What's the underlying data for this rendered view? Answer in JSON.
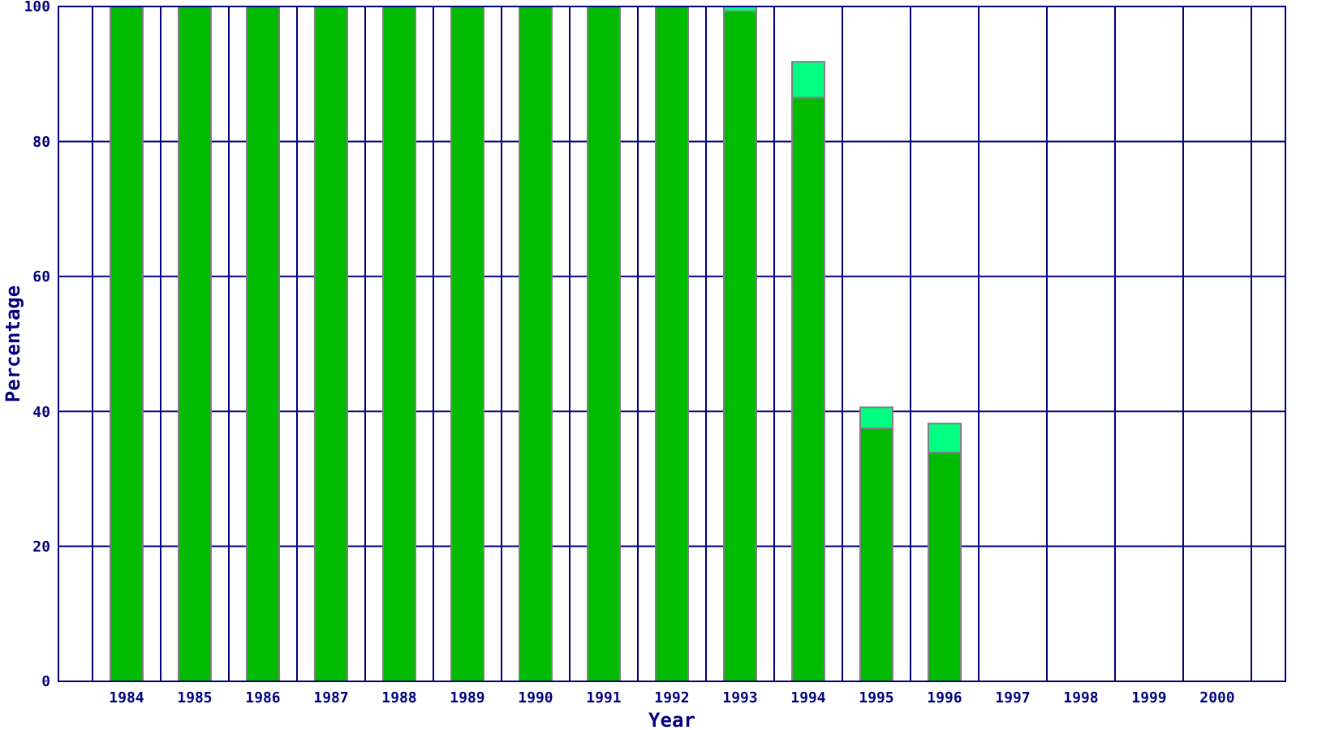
{
  "chart_data": {
    "type": "bar",
    "stacked": true,
    "xlabel": "Year",
    "ylabel": "Percentage",
    "categories": [
      "1984",
      "1985",
      "1986",
      "1987",
      "1988",
      "1989",
      "1990",
      "1991",
      "1992",
      "1993",
      "1994",
      "1995",
      "1996",
      "1997",
      "1998",
      "1999",
      "2000"
    ],
    "series": [
      {
        "color": "#00bb00",
        "values": [
          100,
          100,
          100,
          100,
          100,
          100,
          100,
          100,
          100,
          99.3,
          86.5,
          37.5,
          33.9,
          null,
          null,
          null,
          null
        ]
      },
      {
        "color": "#00ff80",
        "values": [
          0,
          0,
          0,
          0,
          0,
          0,
          0,
          0,
          0,
          0.7,
          5.3,
          3.1,
          4.3,
          null,
          null,
          null,
          null
        ]
      }
    ],
    "ylim": [
      0,
      100
    ],
    "yticks": [
      0,
      20,
      40,
      60,
      80,
      100
    ],
    "grid": true
  }
}
